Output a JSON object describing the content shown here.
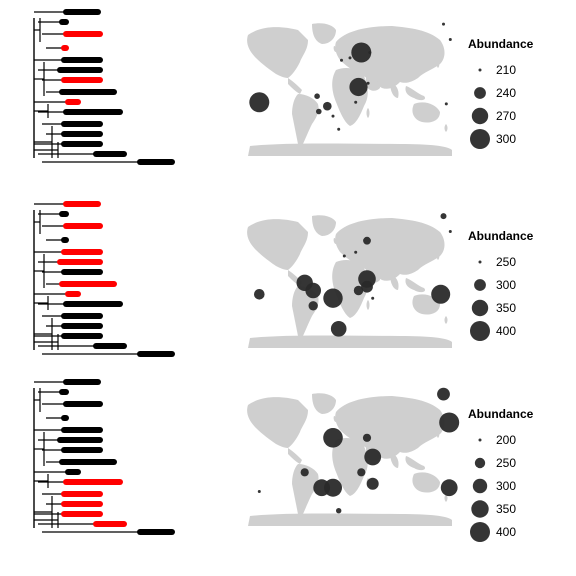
{
  "colors": {
    "highlight": "#ff0000",
    "branch": "#000000",
    "land": "#cfcfcf",
    "bubble": "#2a2a2a"
  },
  "chart_data": [
    {
      "type": "scatter",
      "legend": {
        "title": "Abundance",
        "placement": "right",
        "breaks": [
          {
            "value": 210,
            "label": "210"
          },
          {
            "value": 240,
            "label": "240"
          },
          {
            "value": 270,
            "label": "270"
          },
          {
            "value": 300,
            "label": "300"
          }
        ]
      },
      "tree": {
        "highlighted_tips": [
          2,
          3,
          6,
          8
        ]
      },
      "points": [
        {
          "lon": 165,
          "lat": 82,
          "abundance": 200
        },
        {
          "lon": 177,
          "lat": 62,
          "abundance": 200
        },
        {
          "lon": 20,
          "lat": 45,
          "abundance": 300
        },
        {
          "lon": -15,
          "lat": 35,
          "abundance": 205
        },
        {
          "lon": 0,
          "lat": 38,
          "abundance": 200
        },
        {
          "lon": 15,
          "lat": 0,
          "abundance": 285
        },
        {
          "lon": 32,
          "lat": 5,
          "abundance": 200
        },
        {
          "lon": -160,
          "lat": -20,
          "abundance": 305
        },
        {
          "lon": -58,
          "lat": -12,
          "abundance": 215
        },
        {
          "lon": -40,
          "lat": -25,
          "abundance": 225
        },
        {
          "lon": 10,
          "lat": -20,
          "abundance": 200
        },
        {
          "lon": -55,
          "lat": -32,
          "abundance": 215
        },
        {
          "lon": -30,
          "lat": -38,
          "abundance": 210
        },
        {
          "lon": 170,
          "lat": -22,
          "abundance": 200
        },
        {
          "lon": 35,
          "lat": 45,
          "abundance": 200
        },
        {
          "lon": -20,
          "lat": -55,
          "abundance": 210
        }
      ]
    },
    {
      "type": "scatter",
      "legend": {
        "title": "Abundance",
        "placement": "right",
        "breaks": [
          {
            "value": 250,
            "label": "250"
          },
          {
            "value": 300,
            "label": "300"
          },
          {
            "value": 350,
            "label": "350"
          },
          {
            "value": 400,
            "label": "400"
          }
        ]
      },
      "tree": {
        "highlighted_tips": [
          0,
          2,
          4,
          5,
          7,
          8
        ]
      },
      "points": [
        {
          "lon": 165,
          "lat": 82,
          "abundance": 260
        },
        {
          "lon": 177,
          "lat": 62,
          "abundance": 200
        },
        {
          "lon": 30,
          "lat": 50,
          "abundance": 270
        },
        {
          "lon": -10,
          "lat": 30,
          "abundance": 210
        },
        {
          "lon": 10,
          "lat": 35,
          "abundance": 200
        },
        {
          "lon": 30,
          "lat": 0,
          "abundance": 365
        },
        {
          "lon": 15,
          "lat": -15,
          "abundance": 280
        },
        {
          "lon": 30,
          "lat": -10,
          "abundance": 300
        },
        {
          "lon": -160,
          "lat": -20,
          "abundance": 290
        },
        {
          "lon": -80,
          "lat": -5,
          "abundance": 350
        },
        {
          "lon": -65,
          "lat": -15,
          "abundance": 340
        },
        {
          "lon": -30,
          "lat": -25,
          "abundance": 390
        },
        {
          "lon": -65,
          "lat": -35,
          "abundance": 280
        },
        {
          "lon": 40,
          "lat": -25,
          "abundance": 200
        },
        {
          "lon": 160,
          "lat": -20,
          "abundance": 385
        },
        {
          "lon": -20,
          "lat": -65,
          "abundance": 340
        }
      ]
    },
    {
      "type": "scatter",
      "legend": {
        "title": "Abundance",
        "placement": "right",
        "breaks": [
          {
            "value": 200,
            "label": "200"
          },
          {
            "value": 250,
            "label": "250"
          },
          {
            "value": 300,
            "label": "300"
          },
          {
            "value": 350,
            "label": "350"
          },
          {
            "value": 400,
            "label": "400"
          }
        ]
      },
      "tree": {
        "highlighted_tips": [
          9,
          10,
          11,
          12,
          13
        ]
      },
      "points": [
        {
          "lon": 165,
          "lat": 82,
          "abundance": 280
        },
        {
          "lon": 175,
          "lat": 45,
          "abundance": 400
        },
        {
          "lon": -30,
          "lat": 25,
          "abundance": 390
        },
        {
          "lon": 30,
          "lat": 25,
          "abundance": 230
        },
        {
          "lon": 40,
          "lat": 0,
          "abundance": 340
        },
        {
          "lon": 20,
          "lat": -20,
          "abundance": 230
        },
        {
          "lon": 40,
          "lat": -35,
          "abundance": 270
        },
        {
          "lon": -80,
          "lat": -20,
          "abundance": 230
        },
        {
          "lon": -50,
          "lat": -40,
          "abundance": 340
        },
        {
          "lon": -30,
          "lat": -40,
          "abundance": 360
        },
        {
          "lon": -160,
          "lat": -45,
          "abundance": 200
        },
        {
          "lon": 175,
          "lat": -40,
          "abundance": 340
        },
        {
          "lon": -20,
          "lat": -70,
          "abundance": 210
        }
      ]
    }
  ]
}
